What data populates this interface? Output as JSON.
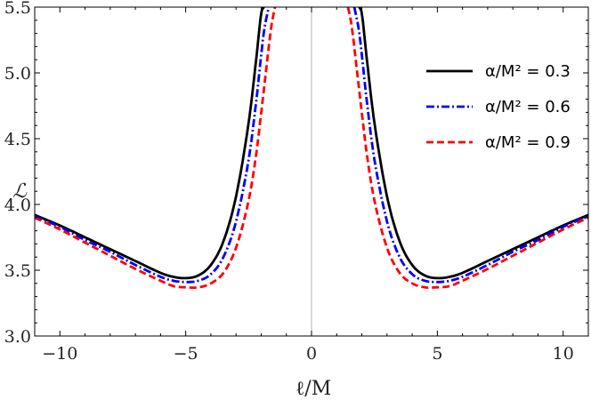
{
  "chart_data": {
    "type": "line",
    "xlabel": "ℓ/M",
    "ylabel": "ℒ",
    "xlim": [
      -11,
      11
    ],
    "ylim": [
      3.0,
      5.5
    ],
    "x_ticks": [
      -10,
      -5,
      0,
      5,
      10
    ],
    "x_tick_labels": [
      "−10",
      "−5",
      "0",
      "5",
      "10"
    ],
    "y_ticks": [
      3.0,
      3.5,
      4.0,
      4.5,
      5.0,
      5.5
    ],
    "y_tick_labels": [
      "3.0",
      "3.5",
      "4.0",
      "4.5",
      "5.0",
      "5.5"
    ],
    "legend_position": "top-right",
    "grid": false,
    "vertical_reference_line_at_x": 0,
    "series": [
      {
        "name": "α/M² = 0.3",
        "color": "#000000",
        "style": "solid",
        "branches": [
          {
            "x": [
              -11,
              -10,
              -9,
              -8,
              -7,
              -6,
              -5.5,
              -5,
              -4.5,
              -4,
              -3.5,
              -3,
              -2.5,
              -2.2,
              -2.0,
              -1.9
            ],
            "y": [
              3.92,
              3.84,
              3.75,
              3.66,
              3.57,
              3.48,
              3.45,
              3.44,
              3.46,
              3.54,
              3.72,
              4.06,
              4.62,
              5.1,
              5.45,
              5.5
            ]
          },
          {
            "x": [
              1.9,
              2.0,
              2.2,
              2.5,
              3,
              3.5,
              4,
              4.5,
              5,
              5.5,
              6,
              7,
              8,
              9,
              10,
              11
            ],
            "y": [
              5.5,
              5.45,
              5.1,
              4.62,
              4.06,
              3.72,
              3.54,
              3.46,
              3.44,
              3.45,
              3.48,
              3.57,
              3.66,
              3.75,
              3.84,
              3.92
            ]
          }
        ]
      },
      {
        "name": "α/M² = 0.6",
        "color": "#0000ff",
        "style": "dash-dot",
        "branches": [
          {
            "x": [
              -11,
              -10,
              -9,
              -8,
              -7,
              -6,
              -5.5,
              -5,
              -4.5,
              -4,
              -3.5,
              -3,
              -2.5,
              -2.2,
              -1.9,
              -1.7
            ],
            "y": [
              3.91,
              3.83,
              3.73,
              3.64,
              3.54,
              3.45,
              3.42,
              3.41,
              3.42,
              3.47,
              3.6,
              3.87,
              4.34,
              4.78,
              5.3,
              5.5
            ]
          },
          {
            "x": [
              1.7,
              1.9,
              2.2,
              2.5,
              3,
              3.5,
              4,
              4.5,
              5,
              5.5,
              6,
              7,
              8,
              9,
              10,
              11
            ],
            "y": [
              5.5,
              5.3,
              4.78,
              4.34,
              3.87,
              3.6,
              3.47,
              3.42,
              3.41,
              3.42,
              3.45,
              3.54,
              3.64,
              3.73,
              3.83,
              3.91
            ]
          }
        ]
      },
      {
        "name": "α/M² = 0.9",
        "color": "#ff0000",
        "style": "dashed",
        "branches": [
          {
            "x": [
              -11,
              -10,
              -9,
              -8,
              -7,
              -6,
              -5.5,
              -5,
              -4.5,
              -4,
              -3.5,
              -3,
              -2.5,
              -2.2,
              -1.9,
              -1.6,
              -1.45
            ],
            "y": [
              3.9,
              3.81,
              3.71,
              3.61,
              3.51,
              3.42,
              3.38,
              3.37,
              3.37,
              3.4,
              3.48,
              3.67,
              4.03,
              4.38,
              4.86,
              5.35,
              5.5
            ]
          },
          {
            "x": [
              1.45,
              1.6,
              1.9,
              2.2,
              2.5,
              3,
              3.5,
              4,
              4.5,
              5,
              5.5,
              6,
              7,
              8,
              9,
              10,
              11
            ],
            "y": [
              5.5,
              5.35,
              4.86,
              4.38,
              4.03,
              3.67,
              3.48,
              3.4,
              3.37,
              3.37,
              3.38,
              3.42,
              3.51,
              3.61,
              3.71,
              3.81,
              3.9
            ]
          }
        ]
      }
    ]
  }
}
